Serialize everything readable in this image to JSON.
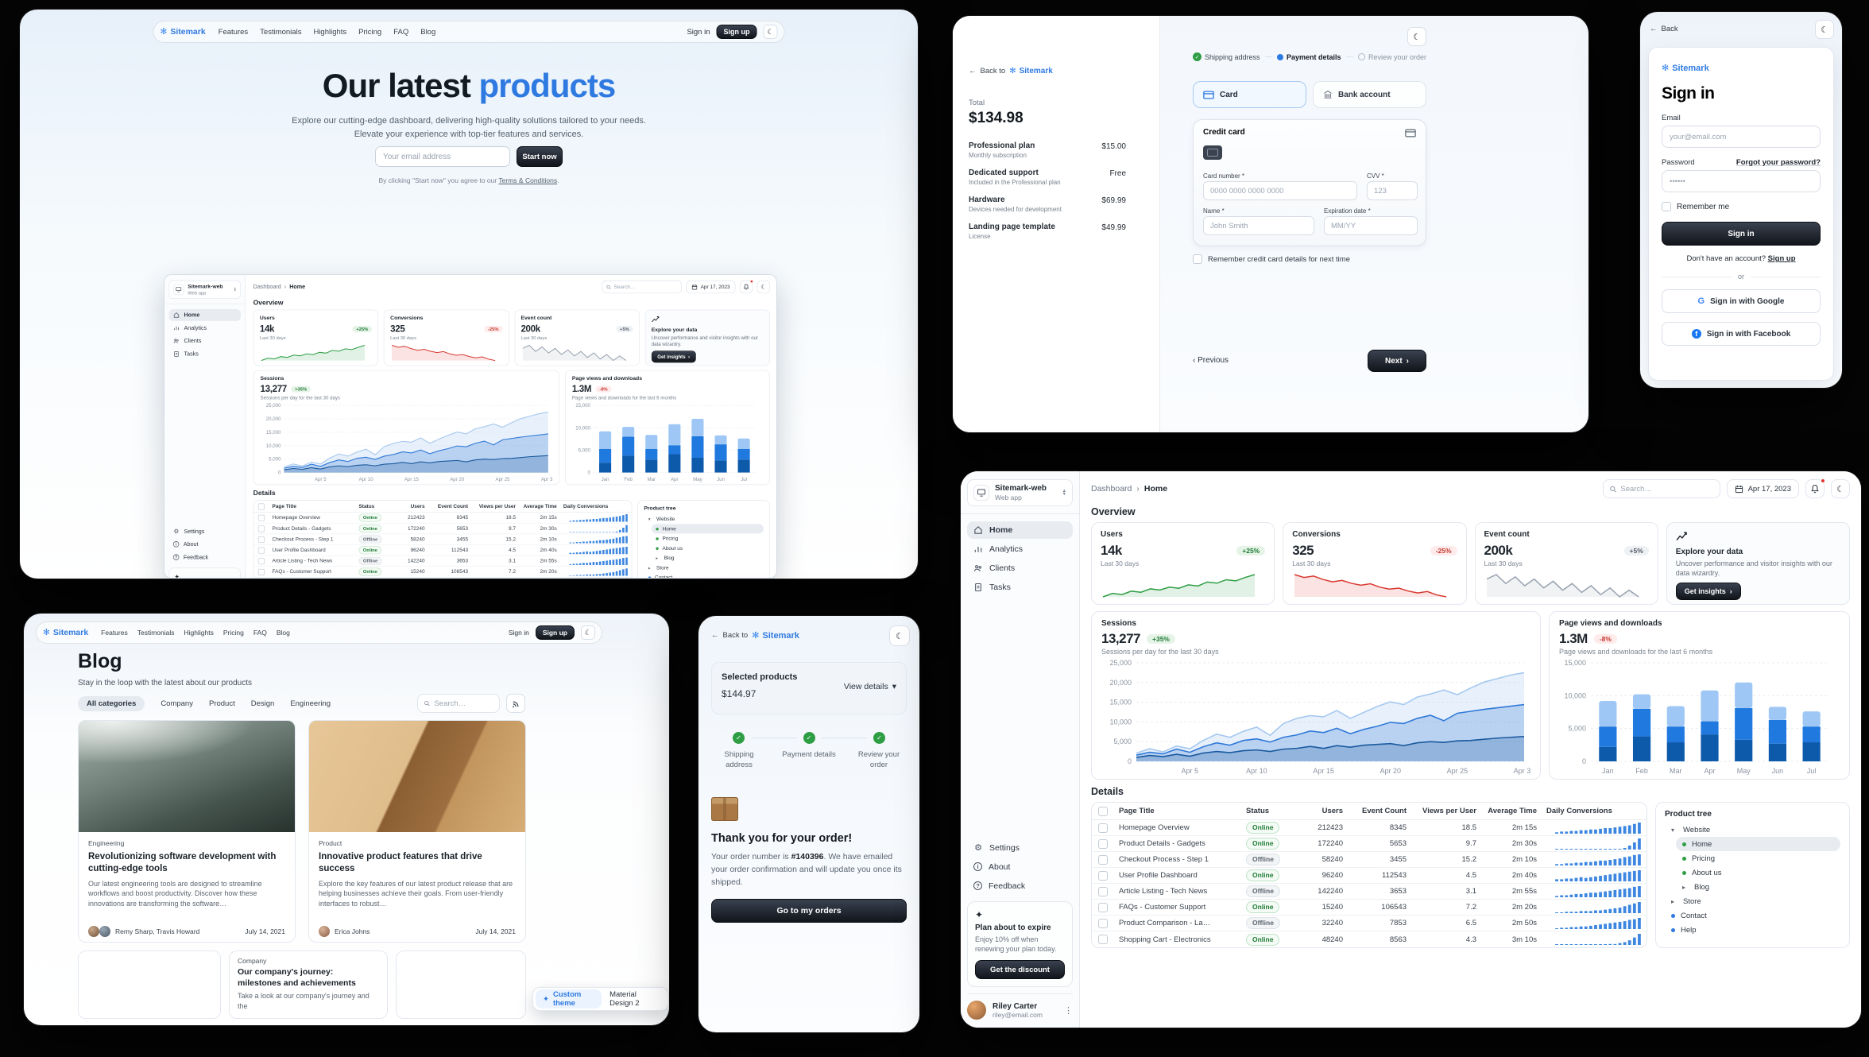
{
  "brand": {
    "name": "Sitemark"
  },
  "nav": {
    "links": [
      "Features",
      "Testimonials",
      "Highlights",
      "Pricing",
      "FAQ",
      "Blog"
    ],
    "sign_in": "Sign in",
    "sign_up": "Sign up"
  },
  "landing": {
    "hero": {
      "title_prefix": "Our latest ",
      "title_accent": "products",
      "subtitle_line1": "Explore our cutting-edge dashboard, delivering high-quality solutions tailored to your needs.",
      "subtitle_line2": "Elevate your experience with top-tier features and services.",
      "email_placeholder": "Your email address",
      "cta": "Start now",
      "terms_prefix": "By clicking \"Start now\" you agree to our ",
      "terms_link": "Terms & Conditions",
      "terms_suffix": "."
    }
  },
  "checkout": {
    "back_to": "Back to",
    "total_label": "Total",
    "total_value": "$134.98",
    "items": [
      {
        "name": "Professional plan",
        "desc": "Monthly subscription",
        "price": "$15.00"
      },
      {
        "name": "Dedicated support",
        "desc": "Included in the Professional plan",
        "price": "Free"
      },
      {
        "name": "Hardware",
        "desc": "Devices needed for development",
        "price": "$69.99"
      },
      {
        "name": "Landing page template",
        "desc": "License",
        "price": "$49.99"
      }
    ],
    "steps": [
      "Shipping address",
      "Payment details",
      "Review your order"
    ],
    "payment": {
      "card_tab": "Card",
      "bank_tab": "Bank account",
      "panel_title": "Credit card",
      "card_number_label": "Card number *",
      "card_number_placeholder": "0000 0000 0000 0000",
      "cvv_label": "CVV *",
      "cvv_placeholder": "123",
      "name_label": "Name *",
      "name_placeholder": "John Smith",
      "exp_label": "Expiration date *",
      "exp_placeholder": "MM/YY",
      "remember": "Remember credit card details for next time",
      "previous": "Previous",
      "next": "Next"
    }
  },
  "signin": {
    "back": "Back",
    "title": "Sign in",
    "email_label": "Email",
    "email_placeholder": "your@email.com",
    "password_label": "Password",
    "forgot": "Forgot your password?",
    "password_placeholder": "••••••",
    "remember": "Remember me",
    "submit": "Sign in",
    "no_account": "Don't have an account?",
    "signup_link": "Sign up",
    "or": "or",
    "google": "Sign in with Google",
    "facebook": "Sign in with Facebook"
  },
  "blog": {
    "title": "Blog",
    "subtitle": "Stay in the loop with the latest about our products",
    "chips": [
      "All categories",
      "Company",
      "Product",
      "Design",
      "Engineering"
    ],
    "search_placeholder": "Search…",
    "posts": [
      {
        "tag": "Engineering",
        "title": "Revolutionizing software development with cutting-edge tools",
        "excerpt": "Our latest engineering tools are designed to streamline workflows and boost productivity. Discover how these innovations are transforming the software…",
        "authors": "Remy Sharp, Travis Howard",
        "date": "July 14, 2021"
      },
      {
        "tag": "Product",
        "title": "Innovative product features that drive success",
        "excerpt": "Explore the key features of our latest product release that are helping businesses achieve their goals. From user-friendly interfaces to robust…",
        "authors": "Erica Johns",
        "date": "July 14, 2021"
      },
      {
        "tag": "Company",
        "title": "Our company's journey: milestones and achievements",
        "excerpt": "Take a look at our company's journey and the"
      }
    ],
    "theme_switcher": {
      "custom": "Custom theme",
      "md2": "Material Design 2"
    }
  },
  "order": {
    "back_to": "Back to",
    "selected_products": "Selected products",
    "amount": "$144.97",
    "view_details": "View details",
    "thanks": "Thank you for your order!",
    "msg_prefix": "Your order number is ",
    "order_number": "#140396",
    "msg_suffix": ". We have emailed your order confirmation and will update you once its shipped.",
    "cta": "Go to my orders"
  },
  "dashboard": {
    "workspace": {
      "name": "Sitemark-web",
      "type": "Web app"
    },
    "breadcrumb": {
      "root": "Dashboard",
      "current": "Home"
    },
    "search_placeholder": "Search…",
    "date": "Apr 17, 2023",
    "nav": [
      {
        "label": "Home"
      },
      {
        "label": "Analytics"
      },
      {
        "label": "Clients"
      },
      {
        "label": "Tasks"
      }
    ],
    "nav_secondary": [
      {
        "label": "Settings"
      },
      {
        "label": "About"
      },
      {
        "label": "Feedback"
      }
    ],
    "plan_card": {
      "title": "Plan about to expire",
      "body": "Enjoy 10% off when renewing your plan today.",
      "cta": "Get the discount"
    },
    "user": {
      "name": "Riley Carter",
      "email": "riley@email.com"
    },
    "overview_title": "Overview",
    "details_title": "Details",
    "stats": [
      {
        "label": "Users",
        "value": "14k",
        "delta": "+25%",
        "period": "Last 30 days",
        "color": "#2e9e44",
        "spark": [
          300,
          420,
          380,
          500,
          460,
          580,
          540,
          640,
          600,
          720,
          680,
          820,
          780,
          900,
          860,
          980,
          1080
        ]
      },
      {
        "label": "Conversions",
        "value": "325",
        "delta": "-25%",
        "period": "Last 30 days",
        "color": "#d93830",
        "spark": [
          980,
          920,
          950,
          880,
          830,
          860,
          800,
          760,
          790,
          720,
          680,
          700,
          640,
          600,
          630,
          560,
          520
        ]
      },
      {
        "label": "Event count",
        "value": "200k",
        "delta": "+5%",
        "period": "Last 30 days",
        "color": "#98a2af",
        "spark": [
          640,
          660,
          620,
          650,
          610,
          640,
          600,
          630,
          590,
          620,
          580,
          610,
          570,
          600,
          560,
          590,
          560
        ]
      }
    ],
    "explore_card": {
      "title": "Explore your data",
      "body": "Uncover performance and visitor insights with our data wizardry.",
      "cta": "Get insights"
    },
    "sessions_chart": {
      "title": "Sessions",
      "value": "13,277",
      "delta": "+35%",
      "subtitle": "Sessions per day for the last 30 days",
      "ymax": 25000,
      "yticks": [
        0,
        5000,
        10000,
        15000,
        20000,
        25000
      ],
      "ytick_labels": [
        "0",
        "5,000",
        "10,000",
        "15,000",
        "20,000",
        "25,000"
      ],
      "xticks": [
        "Apr 5",
        "Apr 10",
        "Apr 15",
        "Apr 20",
        "Apr 25",
        "Apr 30"
      ],
      "xtick_pos": [
        4,
        9,
        14,
        19,
        24,
        29
      ],
      "series": [
        {
          "name": "top",
          "color": "#a5c8f0",
          "values": [
            2100,
            3200,
            2400,
            3900,
            3200,
            5300,
            6900,
            6100,
            7600,
            8700,
            6600,
            9600,
            10900,
            11600,
            11300,
            12900,
            10900,
            12400,
            13900,
            15100,
            14400,
            16300,
            17100,
            18100,
            16900,
            18600,
            20100,
            21000,
            21900,
            22500
          ]
        },
        {
          "name": "middle",
          "color": "#3079d8",
          "values": [
            1600,
            2300,
            1900,
            3100,
            2300,
            3700,
            4700,
            4100,
            5300,
            5700,
            4900,
            6100,
            6700,
            7700,
            7300,
            8400,
            7000,
            8100,
            8900,
            9900,
            9600,
            10900,
            11700,
            10300,
            12200,
            12700,
            13200,
            13600,
            14000,
            14400
          ]
        },
        {
          "name": "bottom",
          "color": "#1a5a9e",
          "values": [
            1000,
            1500,
            1200,
            1800,
            1300,
            2100,
            2500,
            2200,
            2700,
            2900,
            2500,
            3100,
            3300,
            3800,
            3300,
            4000,
            3600,
            4100,
            4300,
            4500,
            4000,
            4700,
            5000,
            4800,
            5200,
            5300,
            5600,
            5900,
            6100,
            6300
          ]
        }
      ]
    },
    "pageviews_chart": {
      "title": "Page views and downloads",
      "value": "1.3M",
      "delta": "-8%",
      "subtitle": "Page views and downloads for the last 6 months",
      "ymax": 15000,
      "yticks": [
        0,
        5000,
        10000,
        15000
      ],
      "ytick_labels": [
        "0",
        "5,000",
        "10,000",
        "15,000"
      ],
      "categories": [
        "Jan",
        "Feb",
        "Mar",
        "Apr",
        "May",
        "Jun",
        "Jul"
      ],
      "stacks": [
        {
          "name": "downloads",
          "color": "#0d5aab",
          "values": [
            2200,
            3800,
            2900,
            4100,
            3300,
            2700,
            2900
          ]
        },
        {
          "name": "conversions",
          "color": "#2079df",
          "values": [
            3100,
            4200,
            2400,
            2000,
            4800,
            3600,
            2400
          ]
        },
        {
          "name": "page views",
          "color": "#9fc7f5",
          "values": [
            3900,
            2200,
            3100,
            4700,
            3900,
            2000,
            2300
          ]
        }
      ]
    },
    "table": {
      "headers": [
        "Page Title",
        "Status",
        "Users",
        "Event Count",
        "Views per User",
        "Average Time",
        "Daily Conversions"
      ],
      "rows": [
        {
          "title": "Homepage Overview",
          "status": "Online",
          "users": "212423",
          "events": "8345",
          "views": "18.5",
          "time": "2m 15s",
          "spark": [
            2,
            3,
            3,
            4,
            4,
            5,
            5,
            6,
            6,
            7,
            8,
            8,
            9,
            10,
            11,
            12,
            14,
            16
          ]
        },
        {
          "title": "Product Details - Gadgets",
          "status": "Online",
          "users": "172240",
          "events": "5653",
          "views": "9.7",
          "time": "2m 30s",
          "spark": [
            0,
            0,
            0,
            0,
            0,
            0,
            0,
            0,
            0,
            0,
            0,
            0,
            0,
            0,
            2,
            5,
            9,
            14
          ]
        },
        {
          "title": "Checkout Process - Step 1",
          "status": "Offline",
          "users": "58240",
          "events": "3455",
          "views": "15.2",
          "time": "2m 10s",
          "spark": [
            2,
            2,
            3,
            3,
            4,
            4,
            5,
            5,
            6,
            7,
            7,
            8,
            9,
            10,
            12,
            13,
            15,
            16
          ]
        },
        {
          "title": "User Profile Dashboard",
          "status": "Online",
          "users": "96240",
          "events": "112543",
          "views": "4.5",
          "time": "2m 40s",
          "spark": [
            3,
            3,
            4,
            4,
            5,
            6,
            5,
            6,
            7,
            8,
            9,
            10,
            11,
            12,
            13,
            14,
            15,
            16
          ]
        },
        {
          "title": "Article Listing - Tech News",
          "status": "Offline",
          "users": "142240",
          "events": "3653",
          "views": "3.1",
          "time": "2m 55s",
          "spark": [
            2,
            3,
            3,
            4,
            5,
            5,
            6,
            7,
            7,
            8,
            9,
            10,
            11,
            12,
            13,
            14,
            16,
            17
          ]
        },
        {
          "title": "FAQs - Customer Support",
          "status": "Online",
          "users": "15240",
          "events": "106543",
          "views": "7.2",
          "time": "2m 20s",
          "spark": [
            1,
            1,
            2,
            2,
            2,
            3,
            3,
            3,
            4,
            4,
            5,
            6,
            7,
            8,
            10,
            12,
            14,
            16
          ]
        },
        {
          "title": "Product Comparison - La…",
          "status": "Offline",
          "users": "32240",
          "events": "7853",
          "views": "6.5",
          "time": "2m 50s",
          "spark": [
            1,
            2,
            2,
            3,
            3,
            4,
            4,
            5,
            6,
            7,
            8,
            9,
            10,
            11,
            12,
            14,
            15,
            17
          ]
        },
        {
          "title": "Shopping Cart - Electronics",
          "status": "Online",
          "users": "48240",
          "events": "8563",
          "views": "4.3",
          "time": "3m 10s",
          "spark": [
            0,
            0,
            0,
            0,
            0,
            0,
            0,
            0,
            0,
            0,
            0,
            1,
            1,
            2,
            3,
            5,
            8,
            12
          ]
        }
      ]
    },
    "tree": {
      "title": "Product tree",
      "items": [
        {
          "label": "Website"
        },
        {
          "label": "Home"
        },
        {
          "label": "Pricing"
        },
        {
          "label": "About us"
        },
        {
          "label": "Blog"
        },
        {
          "label": "Store"
        },
        {
          "label": "Contact"
        },
        {
          "label": "Help"
        }
      ]
    }
  }
}
